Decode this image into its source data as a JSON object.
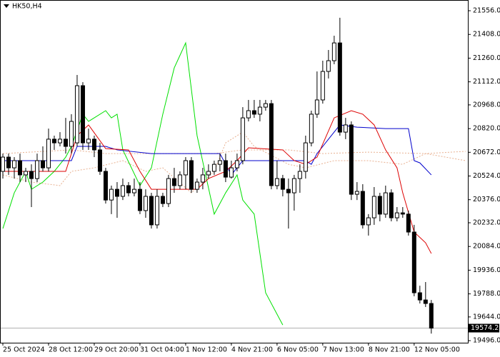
{
  "chart_data": {
    "type": "candlestick",
    "title": "HK50,H4",
    "categories": [
      "25 Oct 2024",
      null,
      null,
      null,
      null,
      null,
      null,
      null,
      "28 Oct 12:00",
      null,
      null,
      null,
      null,
      null,
      null,
      null,
      "29 Oct 20:00",
      null,
      null,
      null,
      null,
      null,
      null,
      null,
      "31 Oct 04:00",
      null,
      null,
      null,
      null,
      null,
      null,
      null,
      "1 Nov 12:00",
      null,
      null,
      null,
      null,
      null,
      null,
      null,
      "4 Nov 21:00",
      null,
      null,
      null,
      null,
      null,
      null,
      null,
      "6 Nov 05:00",
      null,
      null,
      null,
      null,
      null,
      null,
      null,
      "7 Nov 13:00",
      null,
      null,
      null,
      null,
      null,
      null,
      null,
      "8 Nov 21:00",
      null,
      null,
      null,
      null,
      null,
      null,
      null,
      "12 Nov 05:00",
      null,
      null,
      null
    ],
    "open": [
      20553,
      20642,
      20575,
      20620,
      20531,
      20553,
      20508,
      20620,
      20575,
      20754,
      20731,
      20754,
      20709,
      20731,
      21088,
      20731,
      20754,
      20687,
      20553,
      20374,
      20441,
      20397,
      20464,
      20419,
      20441,
      20308,
      20397,
      20219,
      20397,
      20352,
      20508,
      20464,
      20531,
      20620,
      20441,
      20486,
      20531,
      20553,
      20597,
      20620,
      20517,
      20575,
      20620,
      20887,
      20932,
      20910,
      20954,
      20976,
      20464,
      20508,
      20441,
      20419,
      20508,
      20553,
      20731,
      20910,
      20999,
      21177,
      21244,
      21355,
      20798,
      20843,
      20410,
      20428,
      20219,
      20263,
      20397,
      20286,
      20419,
      20263,
      20294,
      20286,
      20174,
      19795,
      19750,
      19728
    ],
    "high": [
      20664,
      20664,
      20642,
      20664,
      20575,
      20597,
      20664,
      20709,
      20820,
      20776,
      20798,
      20887,
      20910,
      21155,
      21110,
      20820,
      20776,
      20731,
      20575,
      20464,
      20486,
      20508,
      20486,
      20508,
      20486,
      20441,
      20419,
      20441,
      20419,
      20531,
      20575,
      20553,
      20642,
      20642,
      20508,
      20575,
      20597,
      20620,
      20664,
      20664,
      20620,
      20664,
      20954,
      20999,
      20999,
      20999,
      20999,
      20999,
      20620,
      20531,
      20508,
      20531,
      20597,
      20776,
      20932,
      21177,
      21244,
      21311,
      21400,
      21512,
      20887,
      20865,
      20486,
      20473,
      20286,
      20455,
      20419,
      20464,
      20441,
      20330,
      20330,
      20308,
      20219,
      19839,
      19862,
      19750
    ],
    "low": [
      20508,
      20531,
      20508,
      20486,
      20486,
      20330,
      20486,
      20553,
      20553,
      20687,
      20709,
      20664,
      20664,
      20709,
      20687,
      20687,
      20642,
      20531,
      20352,
      20286,
      20263,
      20374,
      20397,
      20397,
      20286,
      20263,
      20196,
      20196,
      20330,
      20330,
      20419,
      20441,
      20441,
      20419,
      20419,
      20441,
      20508,
      20531,
      20553,
      20486,
      20508,
      20553,
      20597,
      20865,
      20887,
      20865,
      20932,
      20441,
      20441,
      20397,
      20196,
      20308,
      20419,
      20508,
      20709,
      20887,
      20976,
      21133,
      21222,
      20776,
      20754,
      20374,
      20374,
      20196,
      20152,
      20219,
      20241,
      20263,
      20241,
      20241,
      20263,
      20152,
      19773,
      19728,
      19706,
      19540
    ],
    "close": [
      20642,
      20575,
      20620,
      20531,
      20553,
      20508,
      20620,
      20575,
      20754,
      20731,
      20754,
      20709,
      20865,
      21088,
      20731,
      20754,
      20687,
      20553,
      20374,
      20441,
      20397,
      20464,
      20419,
      20441,
      20308,
      20397,
      20219,
      20397,
      20352,
      20508,
      20464,
      20531,
      20620,
      20441,
      20486,
      20531,
      20553,
      20597,
      20620,
      20517,
      20575,
      20620,
      20887,
      20932,
      20910,
      20954,
      20976,
      20464,
      20508,
      20441,
      20419,
      20508,
      20553,
      20731,
      20910,
      20999,
      21177,
      21244,
      21355,
      20798,
      20843,
      20410,
      20428,
      20219,
      20263,
      20397,
      20286,
      20419,
      20263,
      20294,
      20286,
      20174,
      19795,
      19750,
      19728,
      19574.2
    ],
    "up_color": "#ffffff",
    "down_color": "#000000",
    "lines": [
      {
        "color": "#e8b090",
        "dashed": true,
        "x": [
          0,
          5,
          10,
          12,
          16,
          21,
          25,
          28,
          33,
          37,
          39,
          42,
          44,
          50,
          53,
          58,
          64,
          70,
          74,
          81
        ],
        "values": [
          20531,
          20486,
          20464,
          20553,
          20575,
          20620,
          20553,
          20575,
          20419,
          20553,
          20731,
          20798,
          20709,
          20597,
          20575,
          20620,
          20620,
          20597,
          20664,
          20620
        ]
      },
      {
        "color": "#e8b090",
        "dashed": true,
        "x": [
          0,
          12,
          18,
          28,
          37,
          42,
          50,
          56,
          64,
          74,
          81
        ],
        "values": [
          20664,
          20687,
          20664,
          20664,
          20664,
          20687,
          20687,
          20664,
          20673,
          20664,
          20678
        ]
      },
      {
        "color": "#00e000",
        "dashed": false,
        "x": [
          0,
          2,
          4,
          5,
          7,
          9,
          11,
          12,
          14,
          15,
          18,
          19,
          20,
          21,
          24,
          26,
          28,
          30,
          32,
          34,
          37,
          39,
          41,
          42,
          44,
          46,
          49
        ],
        "values": [
          20196,
          20419,
          20553,
          20441,
          20486,
          20553,
          20642,
          20709,
          20910,
          20865,
          20932,
          20887,
          20910,
          20687,
          20464,
          20575,
          20910,
          21199,
          21355,
          20776,
          20286,
          20419,
          20531,
          20374,
          20286,
          19795,
          19594
        ]
      },
      {
        "color": "#0000cc",
        "dashed": false,
        "x": [
          0,
          12,
          13,
          18,
          20,
          26,
          38,
          40,
          42,
          53,
          54,
          55,
          57,
          59,
          62,
          67,
          71,
          72,
          73,
          75
        ],
        "values": [
          20620,
          20620,
          20709,
          20709,
          20687,
          20664,
          20664,
          20531,
          20620,
          20620,
          20597,
          20664,
          20754,
          20843,
          20829,
          20820,
          20820,
          20620,
          20606,
          20531
        ]
      },
      {
        "color": "#dd0000",
        "dashed": false,
        "x": [
          0,
          11,
          13,
          15,
          18,
          22,
          24,
          26,
          34,
          36,
          39,
          41,
          43,
          49,
          51,
          53,
          55,
          58,
          61,
          63,
          65,
          67,
          69,
          70,
          72,
          74,
          75
        ],
        "values": [
          20553,
          20553,
          20776,
          20843,
          20695,
          20687,
          20553,
          20441,
          20441,
          20508,
          20553,
          20620,
          20700,
          20687,
          20620,
          20597,
          20642,
          20887,
          20932,
          20910,
          20843,
          20687,
          20575,
          20419,
          20174,
          20107,
          20040
        ]
      }
    ],
    "last_price": 19574.2,
    "xlim": [
      -0.5,
      81.4
    ],
    "ylim": [
      19483,
      21623
    ],
    "yticks": [
      {
        "value": 21556,
        "label": "21556.0"
      },
      {
        "value": 21408,
        "label": "21408.0"
      },
      {
        "value": 21260,
        "label": "21260.0"
      },
      {
        "value": 21112,
        "label": "21112.0"
      },
      {
        "value": 20968,
        "label": "20968.0"
      },
      {
        "value": 20820,
        "label": "20820.0"
      },
      {
        "value": 20672,
        "label": "20672.0"
      },
      {
        "value": 20524,
        "label": "20524.0"
      },
      {
        "value": 20376,
        "label": "20376.0"
      },
      {
        "value": 20232,
        "label": "20232.0"
      },
      {
        "value": 20084,
        "label": "20084.0"
      },
      {
        "value": 19936,
        "label": "19936.0"
      },
      {
        "value": 19788,
        "label": "19788.0"
      },
      {
        "value": 19644,
        "label": "19644.0"
      },
      {
        "value": 19496,
        "label": "19496.0"
      }
    ],
    "grid": false
  }
}
